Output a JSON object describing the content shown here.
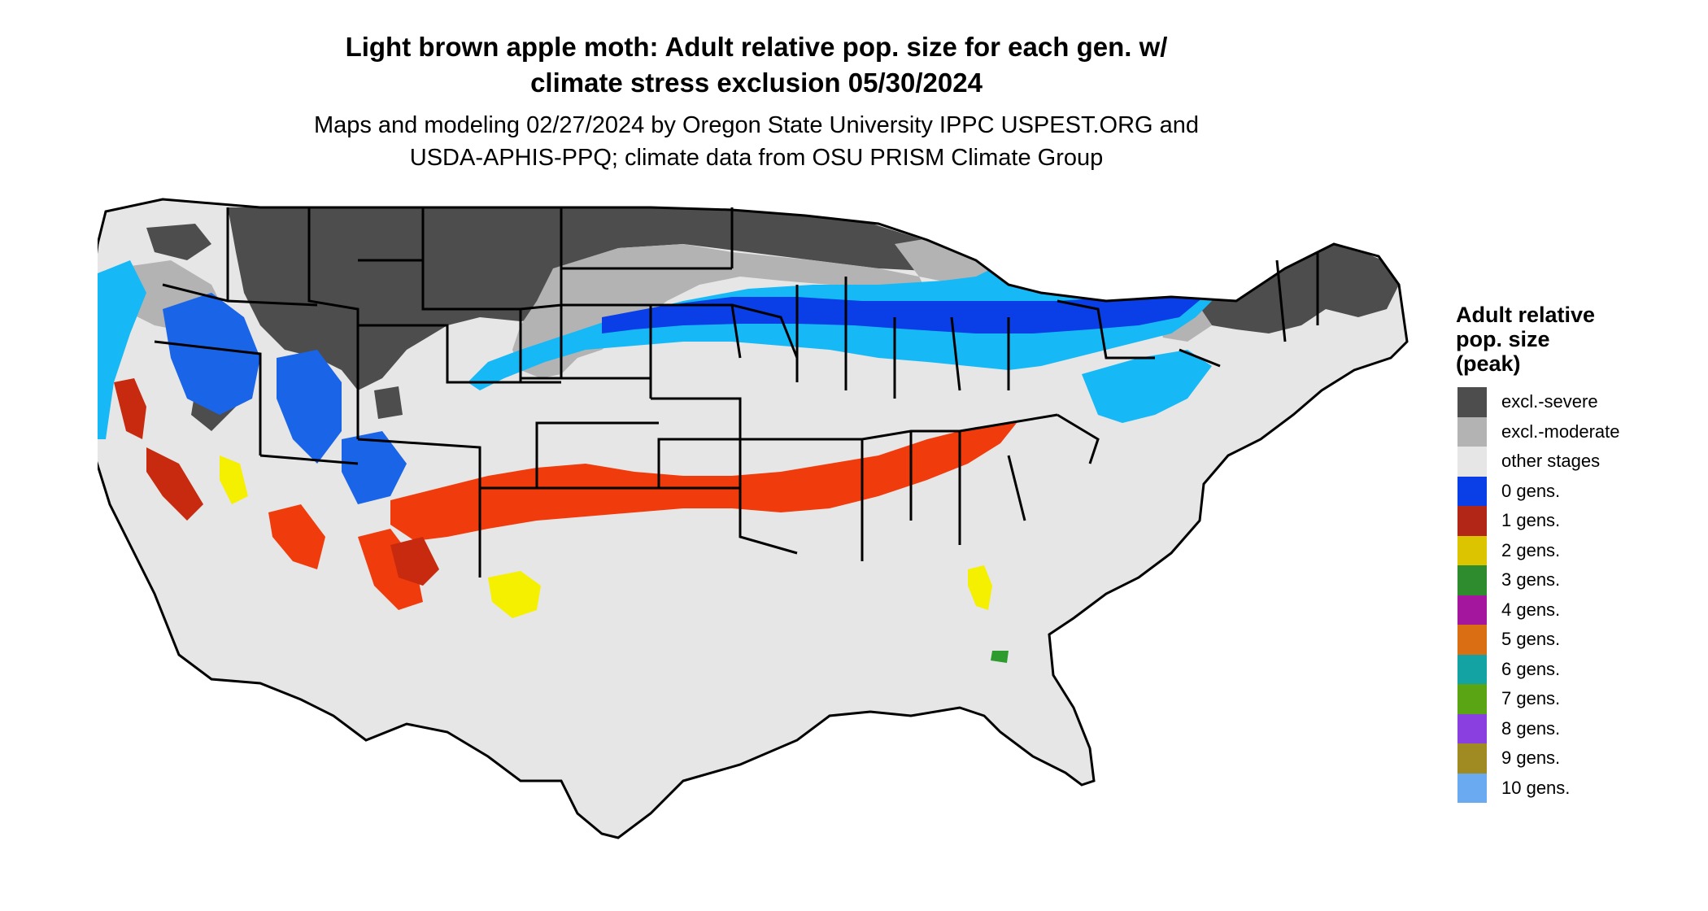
{
  "header": {
    "title_line1": "Light brown apple moth: Adult relative pop. size for each gen. w/",
    "title_line2": "climate stress exclusion 05/30/2024",
    "subtitle_line1": "Maps and modeling 02/27/2024 by Oregon State University IPPC USPEST.ORG and",
    "subtitle_line2": "USDA-APHIS-PPQ; climate data from OSU PRISM Climate Group"
  },
  "legend": {
    "title_line1": "Adult relative",
    "title_line2": "pop. size",
    "title_line3": "(peak)",
    "items": [
      {
        "label": "excl.-severe",
        "color": "#4d4d4d"
      },
      {
        "label": "excl.-moderate",
        "color": "#b3b3b3"
      },
      {
        "label": "other stages",
        "color": "#e6e6e6"
      },
      {
        "label": "0 gens.",
        "color": "#0a3ee6"
      },
      {
        "label": "1 gens.",
        "color": "#b22617"
      },
      {
        "label": "2 gens.",
        "color": "#dcc400"
      },
      {
        "label": "3 gens.",
        "color": "#2e8b2e"
      },
      {
        "label": "4 gens.",
        "color": "#a4169e"
      },
      {
        "label": "5 gens.",
        "color": "#d96e12"
      },
      {
        "label": "6 gens.",
        "color": "#14a3a3"
      },
      {
        "label": "7 gens.",
        "color": "#5aa514"
      },
      {
        "label": "8 gens.",
        "color": "#8a3fe0"
      },
      {
        "label": "9 gens.",
        "color": "#a08a22"
      },
      {
        "label": "10 gens.",
        "color": "#6aaaf0"
      }
    ]
  },
  "map_colors": {
    "land": "#e6e6e6",
    "severe": "#4d4d4d",
    "moderate": "#b3b3b3",
    "zero_gen": "#0a3ee6",
    "zero_gen_light": "#16b8f5",
    "one_gen": "#f03c0c",
    "one_gen_dark": "#c82a10",
    "two_gen": "#f5f000",
    "three_gen": "#2e9b2e",
    "border": "#000000"
  }
}
